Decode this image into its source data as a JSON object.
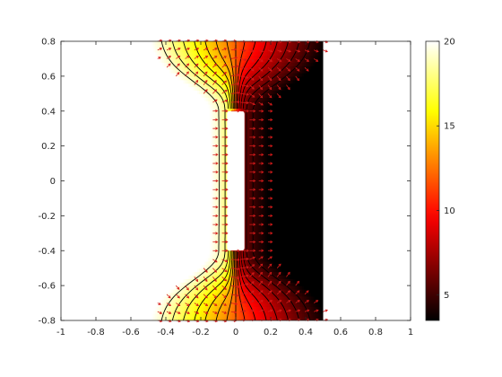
{
  "chart_data": {
    "type": "heatmap",
    "title": "",
    "xlabel": "",
    "ylabel": "",
    "xlim": [
      -1,
      1
    ],
    "ylim": [
      -0.8,
      0.8
    ],
    "xticks": [
      -1,
      -0.8,
      -0.6,
      -0.4,
      -0.2,
      0,
      0.2,
      0.4,
      0.6,
      0.8,
      1
    ],
    "yticks": [
      -0.8,
      -0.6,
      -0.4,
      -0.2,
      0,
      0.2,
      0.4,
      0.6,
      0.8
    ],
    "xtick_labels": [
      "-1",
      "-0.8",
      "-0.6",
      "-0.4",
      "-0.2",
      "0",
      "0.2",
      "0.4",
      "0.6",
      "0.8",
      "1"
    ],
    "ytick_labels": [
      "-0.8",
      "-0.6",
      "-0.4",
      "-0.2",
      "0",
      "0.2",
      "0.4",
      "0.6",
      "0.8"
    ],
    "field_domain": {
      "x": [
        -0.5,
        0.5
      ],
      "y": [
        -0.8,
        0.8
      ]
    },
    "obstacle": {
      "x": [
        -0.05,
        0.05
      ],
      "y": [
        -0.4,
        0.4
      ]
    },
    "left_boundary_value": 20,
    "right_boundary_value": 4,
    "colormap": "hot",
    "colorbar": {
      "range": [
        3.5,
        20
      ],
      "ticks": [
        5,
        10,
        15,
        20
      ],
      "tick_labels": [
        "5",
        "10",
        "15",
        "20"
      ]
    },
    "contour_levels": [
      5,
      6,
      7,
      8,
      9,
      10,
      11,
      12,
      13,
      14,
      15,
      16,
      17,
      18,
      19
    ],
    "contour_color": "#000000",
    "quiver_color": "#d41a1a",
    "quiver_grid": {
      "nx": 20,
      "ny": 33
    },
    "grid": false
  }
}
